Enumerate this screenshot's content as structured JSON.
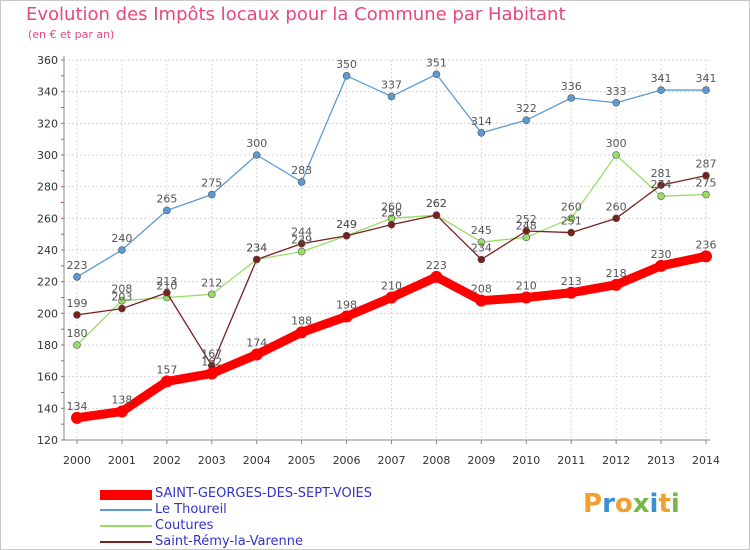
{
  "chart_data": {
    "type": "line",
    "title": "Evolution des Impôts locaux pour la Commune par Habitant",
    "subtitle": "(en € et par an)",
    "categories": [
      "2000",
      "2001",
      "2002",
      "2003",
      "2004",
      "2005",
      "2006",
      "2007",
      "2008",
      "2009",
      "2010",
      "2011",
      "2012",
      "2013",
      "2014"
    ],
    "ylim": [
      120,
      360
    ],
    "yticks": [
      "120",
      "140",
      "160",
      "180",
      "200",
      "220",
      "240",
      "260",
      "280",
      "300",
      "320",
      "340",
      "360"
    ],
    "grid": true,
    "legend_position": "bottom-left",
    "series": [
      {
        "name": "SAINT-GEORGES-DES-SEPT-VOIES",
        "color": "#ff0000",
        "values": [
          134,
          138,
          157,
          162,
          174,
          188,
          198,
          210,
          223,
          208,
          210,
          213,
          218,
          230,
          236
        ]
      },
      {
        "name": "Le Thoureil",
        "color": "#5b9bd5",
        "values": [
          223,
          240,
          265,
          275,
          300,
          283,
          350,
          337,
          351,
          314,
          322,
          336,
          333,
          341,
          341
        ]
      },
      {
        "name": "Coutures",
        "color": "#99dd66",
        "values": [
          180,
          208,
          210,
          212,
          234,
          239,
          249,
          260,
          262,
          245,
          248,
          260,
          300,
          274,
          275
        ]
      },
      {
        "name": "Saint-Rémy-la-Varenne",
        "color": "#7a1f1f",
        "values": [
          199,
          203,
          213,
          167,
          234,
          244,
          249,
          256,
          262,
          234,
          252,
          251,
          260,
          281,
          287
        ]
      }
    ]
  },
  "brand": {
    "letters": [
      {
        "ch": "P",
        "color": "#f0a030"
      },
      {
        "ch": "r",
        "color": "#3a8fd0"
      },
      {
        "ch": "o",
        "color": "#f0a030"
      },
      {
        "ch": "x",
        "color": "#7ab648"
      },
      {
        "ch": "i",
        "color": "#3a8fd0"
      },
      {
        "ch": "t",
        "color": "#f0a030"
      },
      {
        "ch": "i",
        "color": "#7ab648"
      }
    ]
  }
}
